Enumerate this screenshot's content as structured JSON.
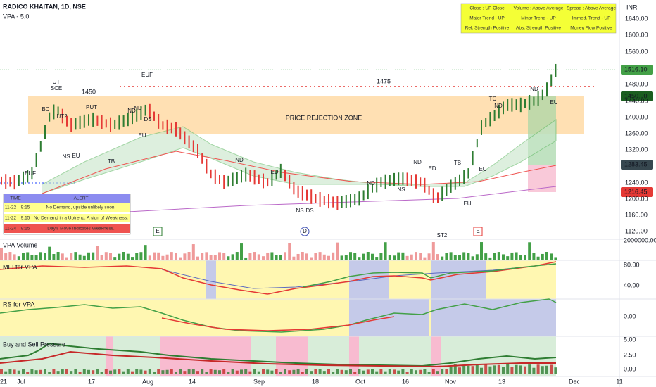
{
  "header": {
    "symbol": "RADICO KHAITAN, 1D, NSE",
    "indicator": "VPA - 5.0"
  },
  "info_table": [
    [
      "Close : UP Close",
      "Volume : Above Average",
      "Spread : Above Average"
    ],
    [
      "Major Trend - UP",
      "Minor Trend - UP",
      "Immed. Trend - UP"
    ],
    [
      "Rel. Strength Positive",
      "Abs. Strength Positive",
      "Money Flow Positive"
    ]
  ],
  "alert_table": {
    "headers": [
      "TIME",
      "ALERT"
    ],
    "rows": [
      [
        "11-22",
        "9:15",
        "No Demand, upside unlikely soon."
      ],
      [
        "11-22",
        "9:15",
        "No Demand in a Uptrend. A sign of Weakness."
      ],
      [
        "11-24",
        "9:15",
        "Day's Move Indicates Weakness."
      ]
    ]
  },
  "price_axis": {
    "currency": "INR",
    "ticks": [
      "1640.00",
      "1600.00",
      "1560.00",
      "1480.00",
      "1440.00",
      "1400.00",
      "1360.00",
      "1320.00",
      "1240.00",
      "1200.00",
      "1160.00",
      "1120.00"
    ],
    "badges": [
      "1516.10",
      "1450.90",
      "1283.45",
      "1216.45"
    ]
  },
  "chart_labels": {
    "level_1": "1450",
    "level_2": "1475",
    "zone": "PRICE REJECTION ZONE"
  },
  "signals": [
    "EUF",
    "UT",
    "SCE",
    "BC",
    "UT2",
    "PUT",
    "ND",
    "ND",
    "DS",
    "EUF",
    "EU",
    "NS",
    "EU",
    "TB",
    "ND",
    "EU",
    "NS",
    "DS",
    "ND",
    "NS",
    "ND",
    "ED",
    "TB",
    "EU",
    "EU",
    "ST2",
    "TC",
    "ND",
    "ND",
    "EU"
  ],
  "events": [
    "E",
    "D",
    "E"
  ],
  "panes": [
    {
      "title": "VPA Volume",
      "ticks": [
        "2000000.00"
      ]
    },
    {
      "title": "MFI for VPA",
      "ticks": [
        "80.00",
        "40.00"
      ]
    },
    {
      "title": "RS for VPA",
      "ticks": [
        "0.00"
      ]
    },
    {
      "title": "Buy and Sell Pressure",
      "ticks": [
        "5.00",
        "2.50",
        "0.00"
      ]
    }
  ],
  "x_axis": [
    "21",
    "Jul",
    "17",
    "Aug",
    "14",
    "Sep",
    "18",
    "Oct",
    "16",
    "Nov",
    "13",
    "Dec",
    "11"
  ]
}
